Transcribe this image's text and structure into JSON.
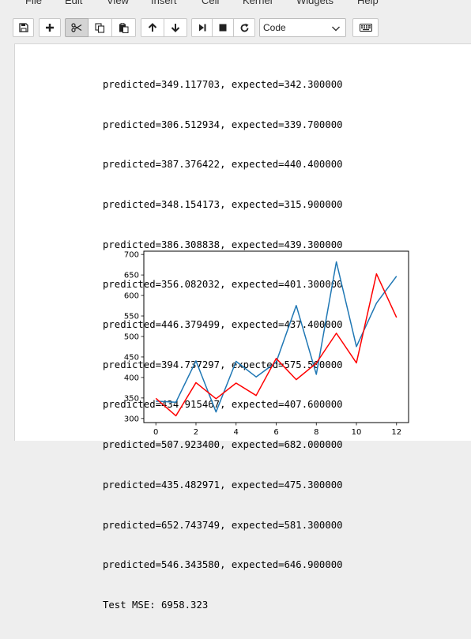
{
  "menubar": {
    "items": [
      "File",
      "Edit",
      "View",
      "Insert",
      "Cell",
      "Kernel",
      "Widgets",
      "Help"
    ]
  },
  "toolbar": {
    "buttons": [
      "save-icon",
      "plus-icon",
      "scissors-icon",
      "copy-icon",
      "paste-icon",
      "arrow-up-icon",
      "arrow-down-icon",
      "step-forward-icon",
      "stop-icon",
      "restart-icon",
      "keyboard-icon"
    ],
    "cell_type": "Code"
  },
  "output": {
    "lines": [
      "predicted=349.117703, expected=342.300000",
      "predicted=306.512934, expected=339.700000",
      "predicted=387.376422, expected=440.400000",
      "predicted=348.154173, expected=315.900000",
      "predicted=386.308838, expected=439.300000",
      "predicted=356.082032, expected=401.300000",
      "predicted=446.379499, expected=437.400000",
      "predicted=394.737297, expected=575.500000",
      "predicted=434.915467, expected=407.600000",
      "predicted=507.923400, expected=682.000000",
      "predicted=435.482971, expected=475.300000",
      "predicted=652.743749, expected=581.300000",
      "predicted=546.343580, expected=646.900000",
      "Test MSE: 6958.323"
    ]
  },
  "chart_data": {
    "type": "line",
    "x": [
      0,
      1,
      2,
      3,
      4,
      5,
      6,
      7,
      8,
      9,
      10,
      11,
      12
    ],
    "series": [
      {
        "color": "#1f77b4",
        "values": [
          342.3,
          339.7,
          440.4,
          315.9,
          439.3,
          401.3,
          437.4,
          575.5,
          407.6,
          682.0,
          475.3,
          581.3,
          646.9
        ]
      },
      {
        "color": "#ff0000",
        "values": [
          349.117703,
          306.512934,
          387.376422,
          348.154173,
          386.308838,
          356.082032,
          446.379499,
          394.737297,
          434.915467,
          507.9234,
          435.482971,
          652.743749,
          546.34358
        ]
      }
    ],
    "xticks": [
      "0",
      "2",
      "4",
      "6",
      "8",
      "10",
      "12"
    ],
    "yticks": [
      "300",
      "350",
      "400",
      "450",
      "500",
      "550",
      "600",
      "650",
      "700"
    ],
    "xlim": [
      -0.6,
      12.6
    ],
    "ylim": [
      290,
      708
    ],
    "grid": false,
    "title": "",
    "xlabel": "",
    "ylabel": ""
  }
}
